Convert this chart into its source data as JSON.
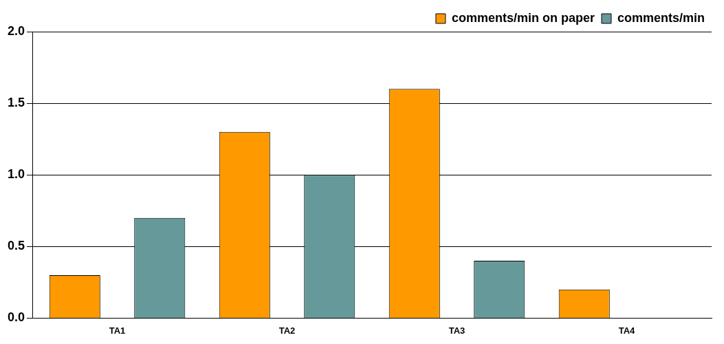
{
  "chart_data": {
    "type": "bar",
    "categories": [
      "TA1",
      "TA2",
      "TA3",
      "TA4"
    ],
    "series": [
      {
        "name": "comments/min on paper",
        "color": "#ff9900",
        "values": [
          0.3,
          1.3,
          1.6,
          0.2
        ]
      },
      {
        "name": "comments/min",
        "color": "#669999",
        "values": [
          0.7,
          1.0,
          0.4,
          0
        ]
      }
    ],
    "ylim": [
      0,
      2
    ],
    "yticks": [
      {
        "value": 0,
        "label": "0.0"
      },
      {
        "value": 0.5,
        "label": "0.5"
      },
      {
        "value": 1,
        "label": "1.0"
      },
      {
        "value": 1.5,
        "label": "1.5"
      },
      {
        "value": 2,
        "label": "2.0"
      }
    ],
    "grid": "y",
    "legend": "top right"
  }
}
